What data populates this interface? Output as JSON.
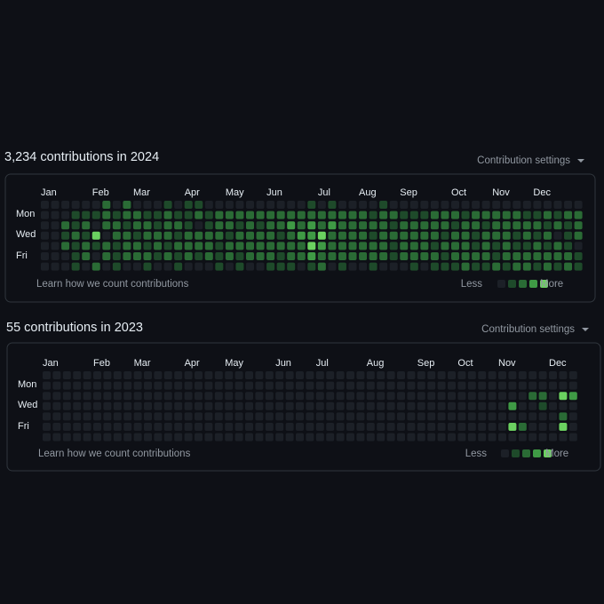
{
  "palette": [
    "#1c2027",
    "#1e4a2a",
    "#2a6b35",
    "#3f9a45",
    "#6bd160"
  ],
  "sections": [
    {
      "title": "3,234 contributions in 2024",
      "settings": "Contribution settings",
      "months": [
        "Jan",
        "Feb",
        "Mar",
        "Apr",
        "May",
        "Jun",
        "Jul",
        "Aug",
        "Sep",
        "Oct",
        "Nov",
        "Dec"
      ],
      "days": [
        "Mon",
        "Wed",
        "Fri"
      ],
      "learn": "Learn how we count contributions",
      "less": "Less",
      "more": "More",
      "levels": [
        [
          0,
          0,
          0,
          0,
          0,
          0,
          2,
          0,
          2,
          0,
          0,
          0,
          1,
          0,
          1,
          1,
          0,
          0,
          0,
          0,
          0,
          0,
          0,
          0,
          0,
          0,
          1,
          0,
          1,
          0,
          0,
          0,
          0,
          1,
          0,
          0,
          0,
          0,
          0,
          0,
          0,
          0,
          0,
          0,
          0,
          0,
          0,
          0,
          0,
          0,
          0,
          0,
          0
        ],
        [
          0,
          0,
          0,
          1,
          1,
          1,
          2,
          1,
          2,
          2,
          1,
          1,
          2,
          1,
          1,
          2,
          1,
          2,
          2,
          2,
          2,
          2,
          2,
          2,
          2,
          2,
          2,
          2,
          2,
          2,
          2,
          2,
          1,
          2,
          2,
          1,
          1,
          1,
          2,
          2,
          2,
          1,
          2,
          2,
          2,
          2,
          2,
          1,
          1,
          2,
          1,
          2,
          2
        ],
        [
          0,
          0,
          2,
          1,
          2,
          0,
          2,
          2,
          1,
          2,
          2,
          1,
          2,
          2,
          1,
          0,
          1,
          2,
          2,
          1,
          2,
          1,
          2,
          2,
          3,
          2,
          3,
          2,
          3,
          2,
          2,
          2,
          2,
          2,
          1,
          2,
          2,
          2,
          2,
          2,
          1,
          2,
          2,
          1,
          2,
          2,
          2,
          2,
          2,
          1,
          2,
          1,
          2
        ],
        [
          0,
          0,
          1,
          2,
          1,
          4,
          0,
          2,
          2,
          1,
          2,
          2,
          2,
          1,
          2,
          2,
          2,
          2,
          1,
          2,
          2,
          2,
          2,
          1,
          2,
          3,
          3,
          4,
          2,
          2,
          2,
          2,
          1,
          2,
          2,
          2,
          2,
          2,
          2,
          1,
          2,
          2,
          1,
          2,
          2,
          2,
          1,
          2,
          1,
          2,
          0,
          1,
          2
        ],
        [
          0,
          0,
          2,
          1,
          2,
          1,
          2,
          1,
          2,
          2,
          1,
          2,
          1,
          2,
          2,
          2,
          2,
          1,
          2,
          2,
          2,
          2,
          2,
          2,
          2,
          2,
          4,
          3,
          2,
          2,
          2,
          2,
          2,
          2,
          1,
          2,
          2,
          2,
          1,
          2,
          2,
          2,
          1,
          2,
          1,
          2,
          1,
          1,
          2,
          1,
          2,
          1,
          0
        ],
        [
          0,
          0,
          0,
          1,
          2,
          0,
          2,
          1,
          2,
          2,
          2,
          1,
          2,
          1,
          2,
          1,
          2,
          1,
          2,
          1,
          2,
          2,
          2,
          1,
          2,
          2,
          3,
          2,
          2,
          2,
          2,
          2,
          2,
          2,
          1,
          2,
          2,
          2,
          2,
          1,
          2,
          2,
          2,
          2,
          1,
          2,
          2,
          2,
          2,
          2,
          2,
          2,
          1
        ],
        [
          0,
          0,
          0,
          1,
          0,
          2,
          0,
          1,
          0,
          0,
          1,
          0,
          0,
          1,
          0,
          0,
          0,
          1,
          0,
          1,
          0,
          0,
          1,
          1,
          1,
          0,
          1,
          2,
          0,
          1,
          0,
          0,
          1,
          0,
          0,
          0,
          1,
          0,
          1,
          1,
          1,
          2,
          1,
          1,
          2,
          1,
          2,
          2,
          1,
          2,
          1,
          2,
          1
        ]
      ]
    },
    {
      "title": "55 contributions in 2023",
      "settings": "Contribution settings",
      "months": [
        "Jan",
        "Feb",
        "Mar",
        "Apr",
        "May",
        "Jun",
        "Jul",
        "Aug",
        "Sep",
        "Oct",
        "Nov",
        "Dec"
      ],
      "days": [
        "Mon",
        "Wed",
        "Fri"
      ],
      "learn": "Learn how we count contributions",
      "less": "Less",
      "more": "More",
      "levels": [
        [
          0,
          0,
          0,
          0,
          0,
          0,
          0,
          0,
          0,
          0,
          0,
          0,
          0,
          0,
          0,
          0,
          0,
          0,
          0,
          0,
          0,
          0,
          0,
          0,
          0,
          0,
          0,
          0,
          0,
          0,
          0,
          0,
          0,
          0,
          0,
          0,
          0,
          0,
          0,
          0,
          0,
          0,
          0,
          0,
          0,
          0,
          0,
          0,
          0,
          0,
          0,
          0,
          0
        ],
        [
          0,
          0,
          0,
          0,
          0,
          0,
          0,
          0,
          0,
          0,
          0,
          0,
          0,
          0,
          0,
          0,
          0,
          0,
          0,
          0,
          0,
          0,
          0,
          0,
          0,
          0,
          0,
          0,
          0,
          0,
          0,
          0,
          0,
          0,
          0,
          0,
          0,
          0,
          0,
          0,
          0,
          0,
          0,
          0,
          0,
          0,
          0,
          0,
          0,
          0,
          0,
          0,
          0
        ],
        [
          0,
          0,
          0,
          0,
          0,
          0,
          0,
          0,
          0,
          0,
          0,
          0,
          0,
          0,
          0,
          0,
          0,
          0,
          0,
          0,
          0,
          0,
          0,
          0,
          0,
          0,
          0,
          0,
          0,
          0,
          0,
          0,
          0,
          0,
          0,
          0,
          0,
          0,
          0,
          0,
          0,
          0,
          0,
          0,
          0,
          0,
          0,
          0,
          2,
          2,
          0,
          4,
          3
        ],
        [
          0,
          0,
          0,
          0,
          0,
          0,
          0,
          0,
          0,
          0,
          0,
          0,
          0,
          0,
          0,
          0,
          0,
          0,
          0,
          0,
          0,
          0,
          0,
          0,
          0,
          0,
          0,
          0,
          0,
          0,
          0,
          0,
          0,
          0,
          0,
          0,
          0,
          0,
          0,
          0,
          0,
          0,
          0,
          0,
          0,
          0,
          3,
          0,
          0,
          1,
          0,
          0,
          0
        ],
        [
          0,
          0,
          0,
          0,
          0,
          0,
          0,
          0,
          0,
          0,
          0,
          0,
          0,
          0,
          0,
          0,
          0,
          0,
          0,
          0,
          0,
          0,
          0,
          0,
          0,
          0,
          0,
          0,
          0,
          0,
          0,
          0,
          0,
          0,
          0,
          0,
          0,
          0,
          0,
          0,
          0,
          0,
          0,
          0,
          0,
          0,
          0,
          0,
          0,
          0,
          0,
          2,
          0
        ],
        [
          0,
          0,
          0,
          0,
          0,
          0,
          0,
          0,
          0,
          0,
          0,
          0,
          0,
          0,
          0,
          0,
          0,
          0,
          0,
          0,
          0,
          0,
          0,
          0,
          0,
          0,
          0,
          0,
          0,
          0,
          0,
          0,
          0,
          0,
          0,
          0,
          0,
          0,
          0,
          0,
          0,
          0,
          0,
          0,
          0,
          0,
          4,
          2,
          0,
          0,
          0,
          4,
          0
        ],
        [
          0,
          0,
          0,
          0,
          0,
          0,
          0,
          0,
          0,
          0,
          0,
          0,
          0,
          0,
          0,
          0,
          0,
          0,
          0,
          0,
          0,
          0,
          0,
          0,
          0,
          0,
          0,
          0,
          0,
          0,
          0,
          0,
          0,
          0,
          0,
          0,
          0,
          0,
          0,
          0,
          0,
          0,
          0,
          0,
          0,
          0,
          0,
          0,
          0,
          0,
          0,
          0,
          0
        ]
      ]
    }
  ]
}
